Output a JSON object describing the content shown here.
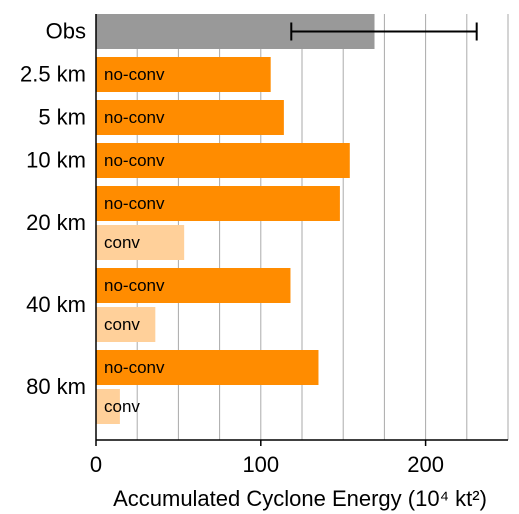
{
  "chart_data": {
    "type": "barh",
    "xlabel": "Accumulated Cyclone Energy (10⁴ kt²)",
    "xlim": [
      0,
      250
    ],
    "xticks": [
      0,
      100,
      200
    ],
    "grid_lines": [
      25,
      50,
      75,
      100,
      125,
      150,
      175,
      200,
      225,
      250
    ],
    "rows": [
      {
        "label": "Obs",
        "bars": [
          {
            "value": 169,
            "error_low": 118.5,
            "error_high": 231,
            "color": "#999999"
          }
        ]
      },
      {
        "label": "2.5 km",
        "bars": [
          {
            "name": "no-conv",
            "value": 106,
            "color": "#ff8c00"
          }
        ]
      },
      {
        "label": "5 km",
        "bars": [
          {
            "name": "no-conv",
            "value": 114,
            "color": "#ff8c00"
          }
        ]
      },
      {
        "label": "10 km",
        "bars": [
          {
            "name": "no-conv",
            "value": 154,
            "color": "#ff8c00"
          }
        ]
      },
      {
        "label": "20 km",
        "bars": [
          {
            "name": "no-conv",
            "value": 148,
            "color": "#ff8c00"
          },
          {
            "name": "conv",
            "value": 53.5,
            "color": "#ffd09a"
          }
        ]
      },
      {
        "label": "40 km",
        "bars": [
          {
            "name": "no-conv",
            "value": 118,
            "color": "#ff8c00"
          },
          {
            "name": "conv",
            "value": 36,
            "color": "#ffd09a"
          }
        ]
      },
      {
        "label": "80 km",
        "bars": [
          {
            "name": "no-conv",
            "value": 135,
            "color": "#ff8c00"
          },
          {
            "name": "conv",
            "value": 14.5,
            "color": "#ffd09a"
          }
        ]
      }
    ]
  }
}
